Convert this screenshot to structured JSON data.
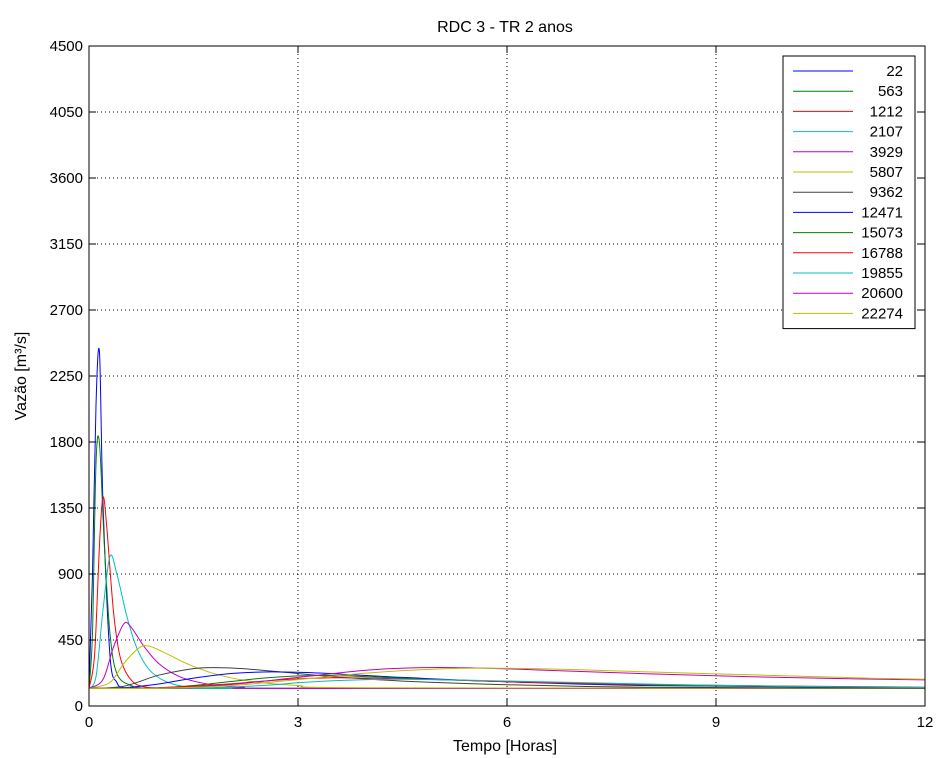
{
  "chart_data": {
    "type": "line",
    "title": "RDC 3 - TR 2 anos",
    "xlabel": "Tempo [Horas]",
    "ylabel": "Vazão [m³/s]",
    "xlim": [
      0,
      12
    ],
    "ylim": [
      0,
      4500
    ],
    "xticks": [
      0,
      3,
      6,
      9,
      12
    ],
    "yticks": [
      0,
      450,
      900,
      1350,
      1800,
      2250,
      2700,
      3150,
      3600,
      4050,
      4500
    ],
    "grid": true,
    "legend_position": "top-right",
    "series": [
      {
        "name": "22",
        "color": "#0000ff",
        "x": [
          0,
          0.05,
          0.1,
          0.15,
          0.2,
          0.3,
          0.4,
          0.5,
          0.7,
          1,
          2,
          12
        ],
        "y": [
          120,
          900,
          2050,
          2410,
          1400,
          350,
          160,
          125,
          120,
          120,
          120,
          120
        ]
      },
      {
        "name": "563",
        "color": "#008000",
        "x": [
          0,
          0.05,
          0.1,
          0.15,
          0.22,
          0.3,
          0.4,
          0.6,
          0.8,
          1.2,
          2,
          12
        ],
        "y": [
          120,
          500,
          1650,
          1790,
          1100,
          500,
          220,
          140,
          122,
          120,
          120,
          120
        ]
      },
      {
        "name": "1212",
        "color": "#ff0000",
        "x": [
          0,
          0.08,
          0.15,
          0.2,
          0.25,
          0.35,
          0.45,
          0.6,
          0.8,
          1.2,
          2,
          12
        ],
        "y": [
          120,
          350,
          1100,
          1420,
          1250,
          650,
          330,
          180,
          130,
          121,
          120,
          120
        ]
      },
      {
        "name": "2107",
        "color": "#00bfbf",
        "x": [
          0,
          0.1,
          0.2,
          0.3,
          0.4,
          0.55,
          0.7,
          0.9,
          1.2,
          1.6,
          2.5,
          12
        ],
        "y": [
          120,
          200,
          650,
          1020,
          900,
          600,
          380,
          230,
          150,
          125,
          120,
          120
        ]
      },
      {
        "name": "3929",
        "color": "#bf00bf",
        "x": [
          0,
          0.2,
          0.35,
          0.5,
          0.6,
          0.8,
          1.0,
          1.3,
          1.7,
          2.2,
          3,
          12
        ],
        "y": [
          120,
          180,
          400,
          560,
          540,
          400,
          290,
          200,
          150,
          128,
          120,
          120
        ]
      },
      {
        "name": "5807",
        "color": "#bfbf00",
        "x": [
          0,
          0.3,
          0.5,
          0.7,
          0.85,
          1.1,
          1.4,
          1.8,
          2.3,
          3,
          4,
          12
        ],
        "y": [
          120,
          160,
          290,
          390,
          410,
          360,
          290,
          220,
          170,
          140,
          125,
          120
        ]
      },
      {
        "name": "9362",
        "color": "#404040",
        "x": [
          0,
          0.5,
          1.0,
          1.5,
          1.8,
          2.2,
          2.8,
          3.5,
          4.5,
          6,
          8,
          12
        ],
        "y": [
          120,
          135,
          210,
          255,
          262,
          255,
          230,
          200,
          170,
          145,
          128,
          122
        ]
      },
      {
        "name": "12471",
        "color": "#0000ff",
        "x": [
          0,
          0.5,
          1.0,
          1.5,
          2.0,
          2.5,
          3.0,
          3.5,
          4.5,
          6,
          8,
          12
        ],
        "y": [
          120,
          125,
          150,
          190,
          220,
          232,
          230,
          220,
          195,
          165,
          140,
          125
        ]
      },
      {
        "name": "15073",
        "color": "#008000",
        "x": [
          0,
          1.0,
          1.5,
          2.0,
          2.5,
          3.0,
          3.5,
          4.0,
          5,
          6.5,
          8.5,
          12
        ],
        "y": [
          120,
          125,
          140,
          165,
          190,
          205,
          208,
          200,
          180,
          160,
          140,
          125
        ]
      },
      {
        "name": "16788",
        "color": "#ff0000",
        "x": [
          0,
          1.0,
          2.0,
          2.5,
          3.0,
          3.5,
          4.0,
          5.0,
          6.0,
          7.5,
          9.5,
          12
        ],
        "y": [
          120,
          125,
          150,
          170,
          185,
          192,
          190,
          180,
          165,
          150,
          138,
          128
        ]
      },
      {
        "name": "19855",
        "color": "#00bfbf",
        "x": [
          0,
          1.5,
          2.5,
          3.0,
          3.5,
          4.0,
          4.5,
          5.5,
          7,
          8.5,
          10,
          12
        ],
        "y": [
          120,
          122,
          140,
          158,
          172,
          180,
          182,
          175,
          160,
          145,
          135,
          126
        ]
      },
      {
        "name": "20600",
        "color": "#bf00bf",
        "x": [
          0,
          1.0,
          2.0,
          3.0,
          4.0,
          4.8,
          5.5,
          6.5,
          8,
          9.5,
          11,
          12
        ],
        "y": [
          120,
          122,
          145,
          195,
          245,
          262,
          260,
          245,
          220,
          200,
          185,
          178
        ]
      },
      {
        "name": "22274",
        "color": "#bfbf00",
        "x": [
          0,
          1.0,
          2.0,
          3.0,
          4.0,
          5.0,
          5.8,
          6.8,
          8.2,
          9.7,
          11,
          12
        ],
        "y": [
          120,
          121,
          138,
          180,
          225,
          252,
          258,
          250,
          230,
          210,
          192,
          182
        ]
      }
    ]
  }
}
